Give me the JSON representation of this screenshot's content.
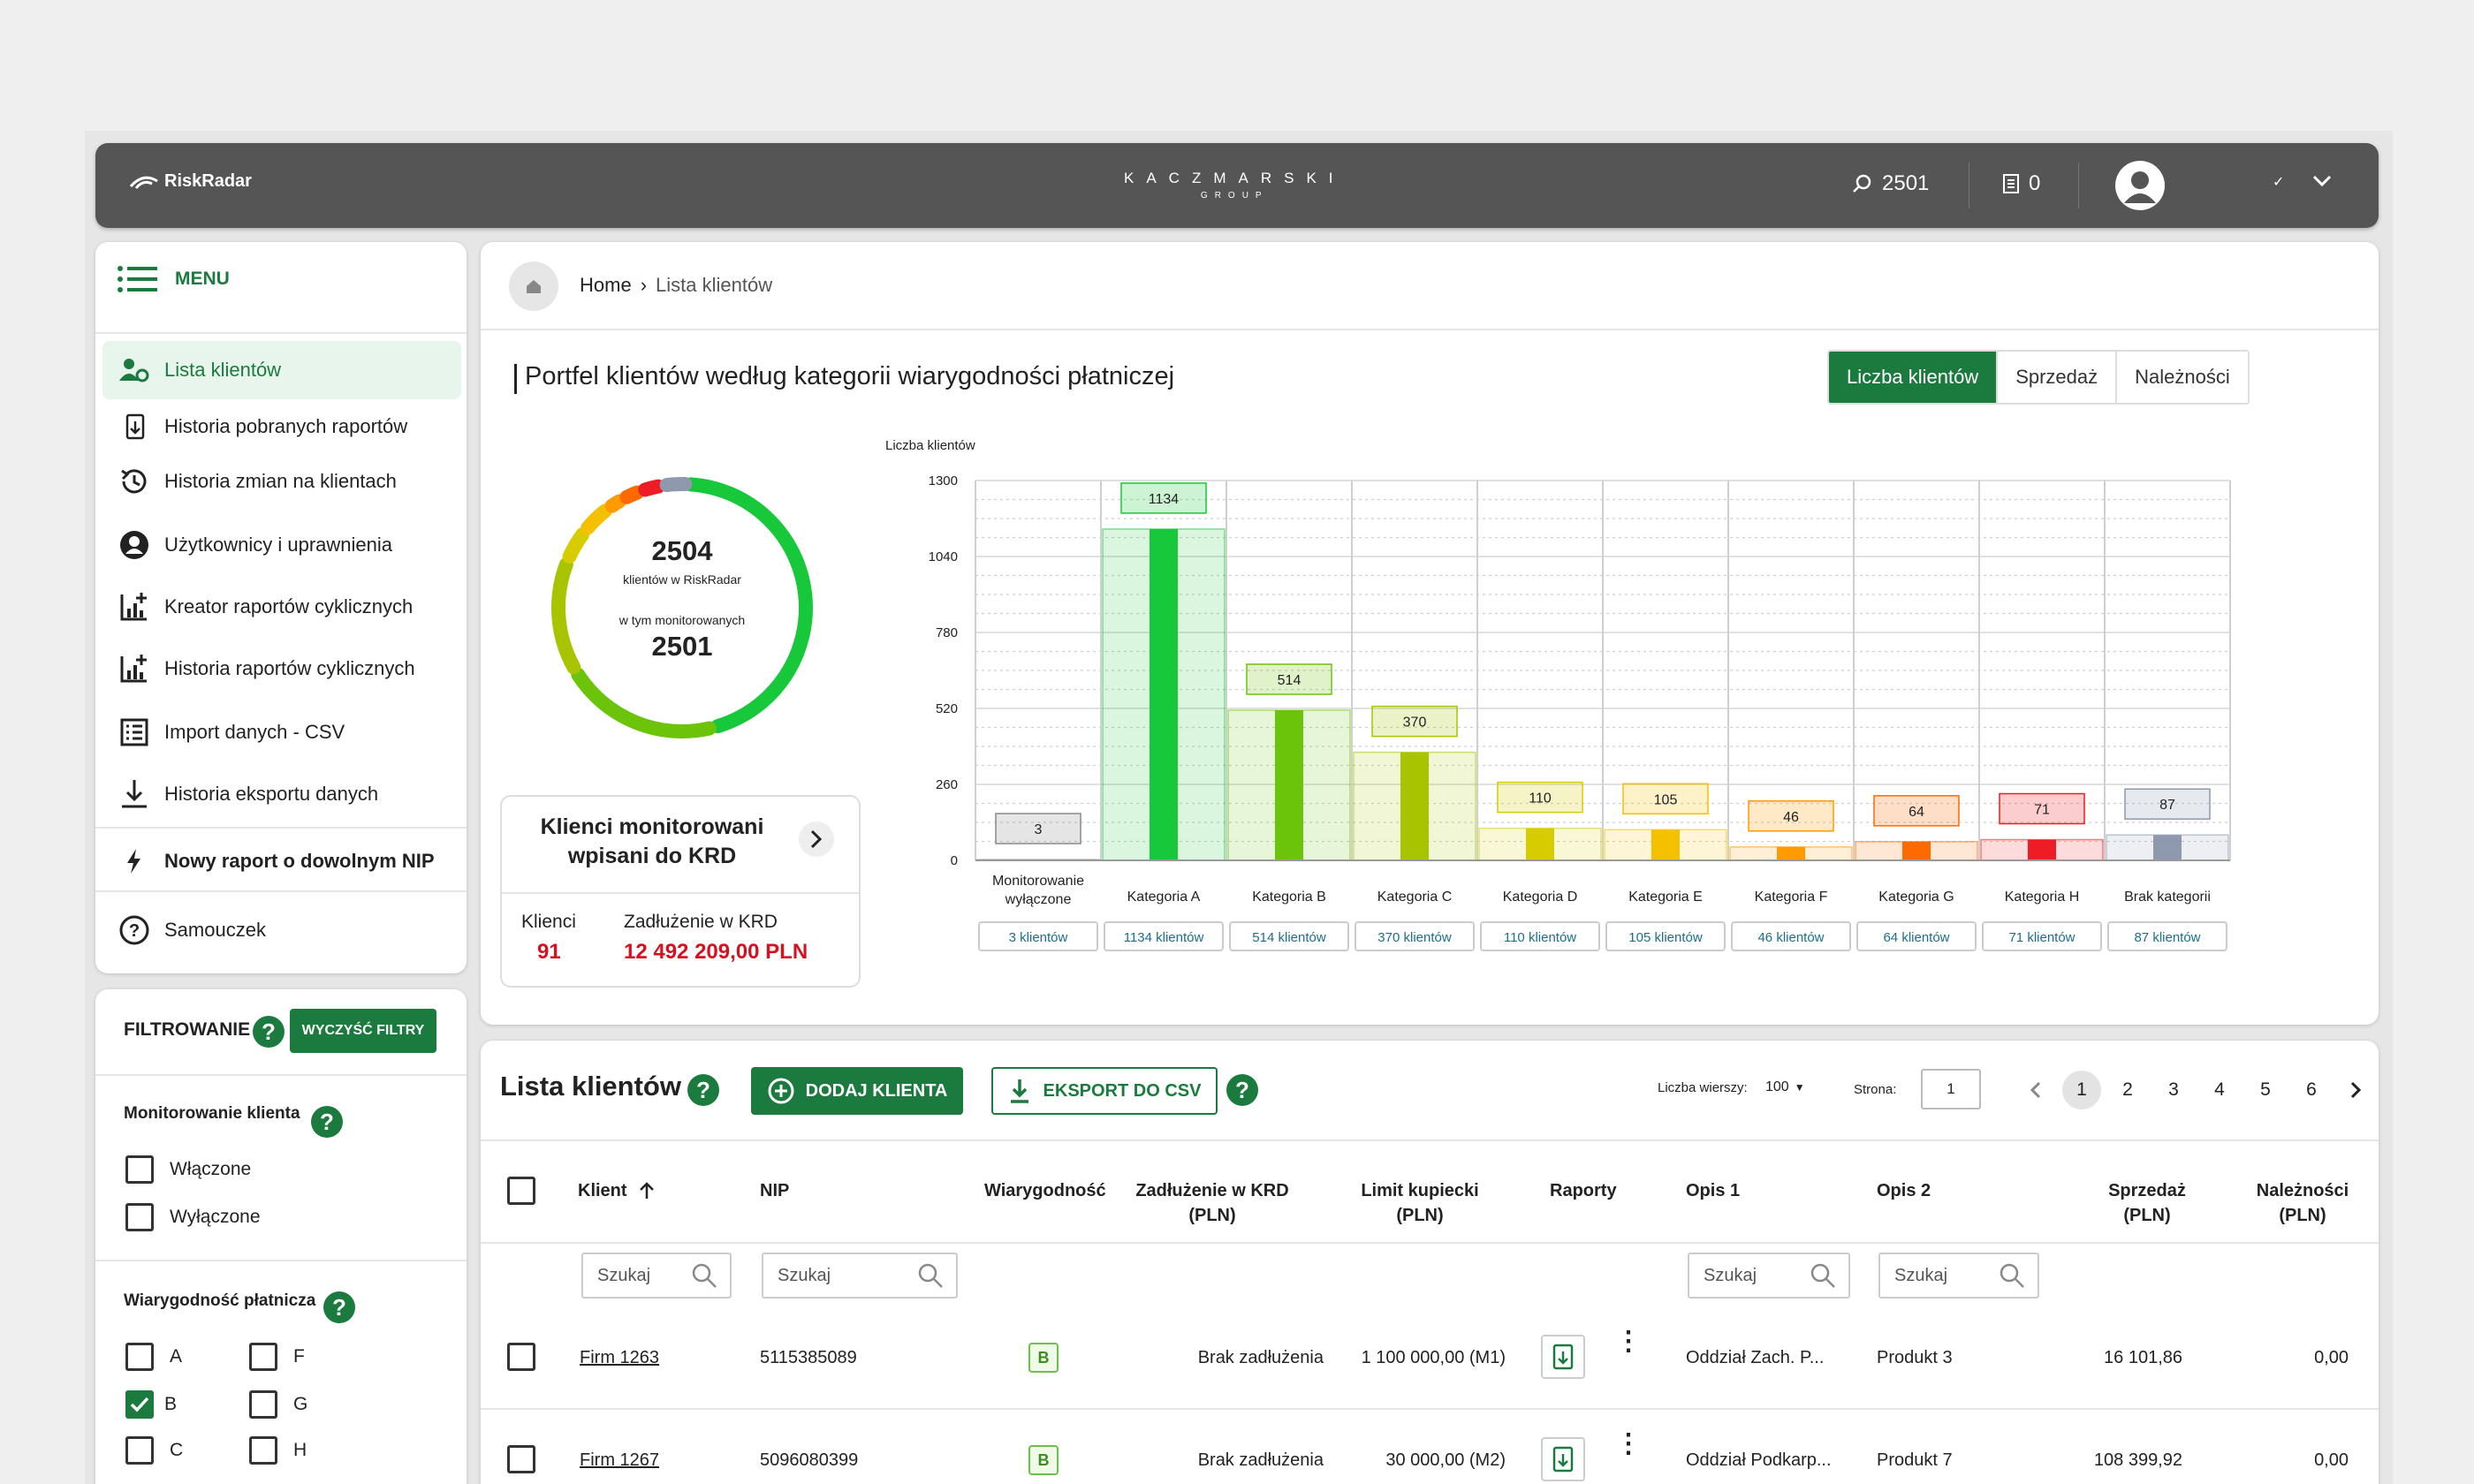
{
  "topbar": {
    "app_name": "RiskRadar",
    "brand": "KACZMARSKI",
    "brand_sub": "GROUP",
    "search_count": "2501",
    "reports_count": "0"
  },
  "menu": {
    "title": "MENU",
    "items": [
      {
        "label": "Lista klientów",
        "icon": "users-gear-icon"
      },
      {
        "label": "Historia pobranych raportów",
        "icon": "document-download-icon"
      },
      {
        "label": "Historia zmian na klientach",
        "icon": "history-icon"
      },
      {
        "label": "Użytkownicy i uprawnienia",
        "icon": "user-circle-icon"
      },
      {
        "label": "Kreator raportów cyklicznych",
        "icon": "chart-plus-icon"
      },
      {
        "label": "Historia raportów cyklicznych",
        "icon": "chart-plus-icon"
      },
      {
        "label": "Import danych - CSV",
        "icon": "list-icon"
      },
      {
        "label": "Historia eksportu danych",
        "icon": "download-icon"
      }
    ],
    "new_report": "Nowy raport o dowolnym NIP",
    "tutorial": "Samouczek"
  },
  "filters": {
    "title": "FILTROWANIE",
    "clear_button": "WYCZYŚĆ FILTRY",
    "monitoring_title": "Monitorowanie klienta",
    "monitoring_options": [
      "Włączone",
      "Wyłączone"
    ],
    "credit_title": "Wiarygodność płatnicza",
    "credit_options": [
      {
        "label": "A",
        "checked": false
      },
      {
        "label": "F",
        "checked": false
      },
      {
        "label": "B",
        "checked": true
      },
      {
        "label": "G",
        "checked": false
      },
      {
        "label": "C",
        "checked": false
      },
      {
        "label": "H",
        "checked": false
      }
    ]
  },
  "breadcrumb": {
    "home": "Home",
    "separator": "›",
    "current": "Lista klientów"
  },
  "portfolio": {
    "title": "Portfel klientów według kategorii wiarygodności płatniczej",
    "tabs": [
      "Liczba klientów",
      "Sprzedaż",
      "Należności"
    ],
    "active_tab": "Liczba klientów",
    "donut_total": "2504",
    "donut_total_label": "klientów w RiskRadar",
    "donut_sub_label": "w tym monitorowanych",
    "donut_monitored": "2501",
    "krd_card_title": "Klienci monitorowani wpisani do KRD",
    "krd_clients_label": "Klienci",
    "krd_clients_value": "91",
    "krd_debt_label": "Zadłużenie w KRD",
    "krd_debt_value": "12 492 209,00 PLN"
  },
  "chart_data": {
    "type": "bar",
    "ylabel": "Liczba klientów",
    "ylim": [
      0,
      1300
    ],
    "yticks": [
      0,
      260,
      520,
      780,
      1040,
      1300
    ],
    "categories": [
      "Monitorowanie wyłączone",
      "Kategoria A",
      "Kategoria B",
      "Kategoria C",
      "Kategoria D",
      "Kategoria E",
      "Kategoria F",
      "Kategoria G",
      "Kategoria H",
      "Brak kategorii"
    ],
    "values": [
      3,
      1134,
      514,
      370,
      110,
      105,
      46,
      64,
      71,
      87
    ],
    "count_labels": [
      "3 klientów",
      "1134 klientów",
      "514 klientów",
      "370 klientów",
      "110 klientów",
      "105 klientów",
      "46 klientów",
      "64 klientów",
      "71 klientów",
      "87 klientów"
    ],
    "colors": [
      "#8a8a8a",
      "#17c83a",
      "#6cc40a",
      "#a8c400",
      "#d6cc00",
      "#f5c000",
      "#ff9a00",
      "#ff6a00",
      "#ee1c24",
      "#8e99ad"
    ]
  },
  "list": {
    "title": "Lista klientów",
    "add_button": "DODAJ KLIENTA",
    "export_button": "EKSPORT DO CSV",
    "rows_label": "Liczba wierszy:",
    "rows_value": "100",
    "page_label": "Strona:",
    "page_value": "1",
    "pages": [
      "1",
      "2",
      "3",
      "4",
      "5",
      "6"
    ],
    "search_placeholder": "Szukaj",
    "columns": {
      "client": "Klient",
      "nip": "NIP",
      "credit": "Wiarygodność",
      "krd_debt": "Zadłużenie w KRD (PLN)",
      "limit": "Limit kupiecki (PLN)",
      "reports": "Raporty",
      "desc1": "Opis 1",
      "desc2": "Opis 2",
      "sales": "Sprzedaż (PLN)",
      "receivables": "Należności (PLN)"
    },
    "rows": [
      {
        "client": "Firm 1263",
        "nip": "5115385089",
        "credit": "B",
        "krd": "Brak zadłużenia",
        "limit": "1 100 000,00 (M1)",
        "desc1": "Oddział Zach. P...",
        "desc2": "Produkt 3",
        "sales": "16 101,86",
        "receivables": "0,00"
      },
      {
        "client": "Firm 1267",
        "nip": "5096080399",
        "credit": "B",
        "krd": "Brak zadłużenia",
        "limit": "30 000,00 (M2)",
        "desc1": "Oddział Podkarp...",
        "desc2": "Produkt 7",
        "sales": "108 399,92",
        "receivables": "0,00"
      }
    ]
  }
}
